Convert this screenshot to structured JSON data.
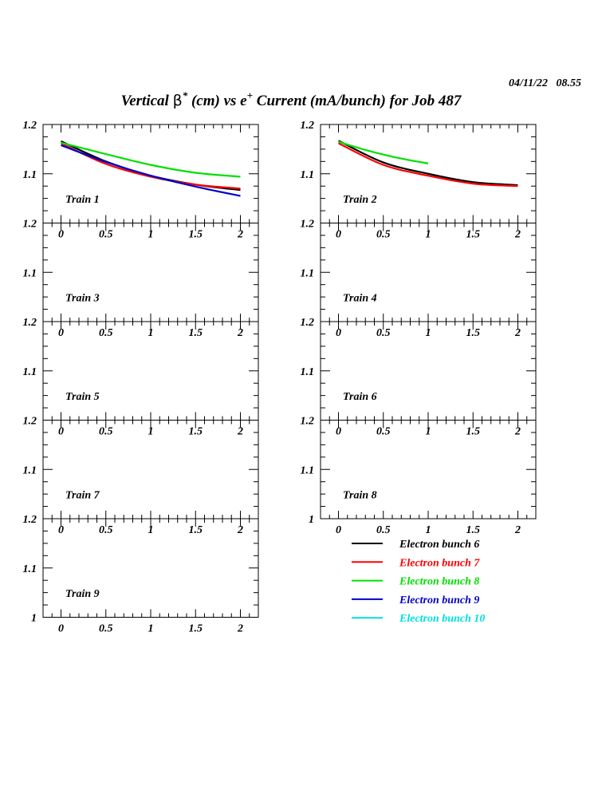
{
  "header": {
    "title_prefix": "Vertical ",
    "beta": "β",
    "star": "*",
    "title_mid": " (cm) vs e",
    "plus": "+",
    "title_suffix": " Current (mA/bunch) for Job 487",
    "timestamp": "04/11/22   08.55"
  },
  "colors": {
    "axis": "#000000",
    "bunch6": "#000000",
    "bunch7": "#ff0000",
    "bunch8": "#00e000",
    "bunch9": "#0000cc",
    "bunch10": "#00e0e0"
  },
  "chart_data": {
    "type": "line",
    "title": "Vertical β* (cm) vs e+ Current (mA/bunch) for Job 487",
    "xlabel": "",
    "ylabel": "",
    "xlim": [
      -0.2,
      2.2
    ],
    "ylim": [
      1.0,
      1.2
    ],
    "x_ticks": [
      0,
      0.5,
      1,
      1.5,
      2
    ],
    "x_tick_labels": [
      "0",
      "0.5",
      "1",
      "1.5",
      "2"
    ],
    "y_ticks": [
      1.0,
      1.1,
      1.2
    ],
    "y_tick_labels": [
      "1",
      "1.1",
      "1.2"
    ],
    "grid": false,
    "legend": [
      {
        "label": "Electron bunch 6",
        "color": "#000000"
      },
      {
        "label": "Electron bunch 7",
        "color": "#ff0000"
      },
      {
        "label": "Electron bunch 8",
        "color": "#00e000"
      },
      {
        "label": "Electron bunch 9",
        "color": "#0000cc"
      },
      {
        "label": "Electron bunch 10",
        "color": "#00e0e0"
      }
    ],
    "legend_position": "bottom-right",
    "panels": [
      {
        "label": "Train 1",
        "series": [
          {
            "name": "Electron bunch 6",
            "color": "#000000",
            "x": [
              0,
              0.5,
              1,
              1.5,
              2
            ],
            "y": [
              1.166,
              1.125,
              1.096,
              1.078,
              1.067
            ]
          },
          {
            "name": "Electron bunch 7",
            "color": "#ff0000",
            "x": [
              0,
              0.5,
              1,
              1.5,
              2
            ],
            "y": [
              1.162,
              1.12,
              1.094,
              1.078,
              1.07
            ]
          },
          {
            "name": "Electron bunch 8",
            "color": "#00e000",
            "x": [
              0,
              0.5,
              1,
              1.5,
              2
            ],
            "y": [
              1.163,
              1.14,
              1.118,
              1.102,
              1.094
            ]
          },
          {
            "name": "Electron bunch 9",
            "color": "#0000cc",
            "x": [
              0,
              0.5,
              1,
              1.5,
              2
            ],
            "y": [
              1.158,
              1.124,
              1.096,
              1.074,
              1.055
            ]
          }
        ]
      },
      {
        "label": "Train 2",
        "series": [
          {
            "name": "Electron bunch 6",
            "color": "#000000",
            "x": [
              0,
              0.5,
              1,
              1.5,
              2
            ],
            "y": [
              1.167,
              1.123,
              1.1,
              1.083,
              1.077
            ]
          },
          {
            "name": "Electron bunch 7",
            "color": "#ff0000",
            "x": [
              0,
              0.5,
              1,
              1.5,
              2
            ],
            "y": [
              1.162,
              1.118,
              1.096,
              1.08,
              1.075
            ]
          },
          {
            "name": "Electron bunch 8",
            "color": "#00e000",
            "x": [
              0,
              0.25,
              0.5,
              0.75,
              1
            ],
            "y": [
              1.165,
              1.151,
              1.139,
              1.129,
              1.121
            ]
          }
        ]
      },
      {
        "label": "Train 3",
        "series": []
      },
      {
        "label": "Train 4",
        "series": []
      },
      {
        "label": "Train 5",
        "series": []
      },
      {
        "label": "Train 6",
        "series": []
      },
      {
        "label": "Train 7",
        "series": []
      },
      {
        "label": "Train 8",
        "series": []
      },
      {
        "label": "Train 9",
        "series": []
      }
    ]
  }
}
